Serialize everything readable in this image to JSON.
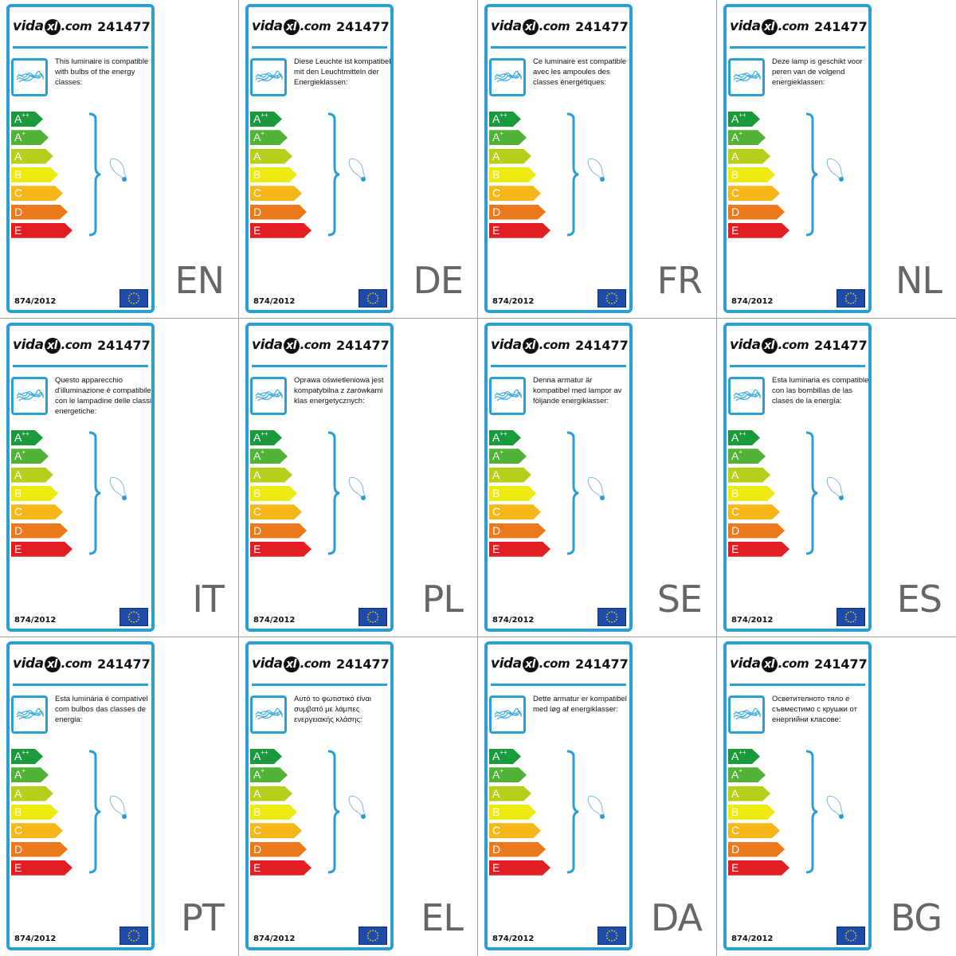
{
  "brand": {
    "logo_left": "vida",
    "logo_mark": "xl",
    "logo_right": ".com"
  },
  "product_code": "241477",
  "regulation": "874/2012",
  "colors": {
    "frame": "#2a9fd6",
    "language_code": "#666666",
    "eu_flag": "#1f4aa8"
  },
  "energy_classes": [
    {
      "letter": "A",
      "sup": "++",
      "color": "#1a9a3c"
    },
    {
      "letter": "A",
      "sup": "+",
      "color": "#52b238"
    },
    {
      "letter": "A",
      "sup": "",
      "color": "#b6cf1a"
    },
    {
      "letter": "B",
      "sup": "",
      "color": "#ecea12"
    },
    {
      "letter": "C",
      "sup": "",
      "color": "#f5b71a"
    },
    {
      "letter": "D",
      "sup": "",
      "color": "#ec7a1c"
    },
    {
      "letter": "E",
      "sup": "",
      "color": "#e21d24"
    }
  ],
  "icons": [
    "luminaire-icon",
    "bracket-icon",
    "bulb-icon",
    "eu-flag-icon"
  ],
  "labels": [
    {
      "lang": "EN",
      "text": "This luminaire is compatible with bulbs of the energy classes:"
    },
    {
      "lang": "DE",
      "text": "Diese Leuchte ist kompatibel mit den Leuchtmitteln der Energieklassen:"
    },
    {
      "lang": "FR",
      "text": "Ce luminaire est compatible avec les ampoules des classes énergétiques:"
    },
    {
      "lang": "NL",
      "text": "Deze lamp is geschikt voor peren van de volgend energieklassen:"
    },
    {
      "lang": "IT",
      "text": "Questo apparecchio d'illuminazione è compatibile con le lampadine delle classi energetiche:"
    },
    {
      "lang": "PL",
      "text": "Oprawa oświetleniowa jest kompatybilna z żarówkami klas energetycznych:"
    },
    {
      "lang": "SE",
      "text": "Denna armatur är kompatibel med lampor av följande energiklasser:"
    },
    {
      "lang": "ES",
      "text": "Esta luminaria es compatible con las bombillas de las clases de la energía:"
    },
    {
      "lang": "PT",
      "text": "Esta luminária é compatível com bulbos das classes de energia:"
    },
    {
      "lang": "EL",
      "text": "Αυτό το φωτιστικό είναι συμβατό με λάμπες ενεργειακής κλάσης:"
    },
    {
      "lang": "DA",
      "text": "Dette armatur er kompatibel med løg af energiklasser:"
    },
    {
      "lang": "BG",
      "text": "Осветителното тяло е съвместимо с крушки от енергийни класове:"
    }
  ]
}
